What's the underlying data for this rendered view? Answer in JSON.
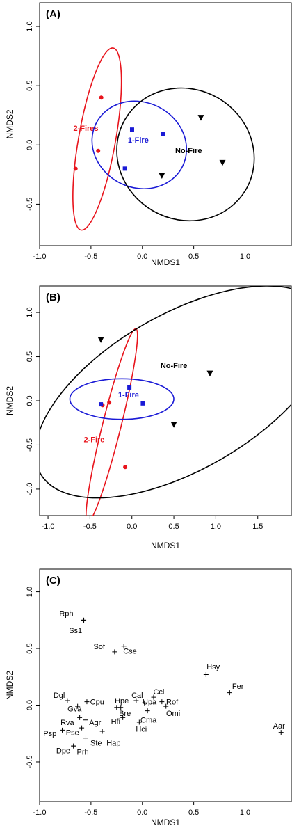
{
  "chart_data": [
    {
      "type": "scatter",
      "panel_label": "(A)",
      "xlabel": "NMDS1",
      "ylabel": "NMDS2",
      "xlim": [
        -1.0,
        1.45
      ],
      "ylim": [
        -0.85,
        1.2
      ],
      "xticks": [
        "-1.0",
        "-0.5",
        "0.0",
        "0.5",
        "1.0"
      ],
      "yticks": [
        "-0.5",
        "0.0",
        "0.5",
        "1.0"
      ],
      "colors": {
        "two_fires": "#e8141c",
        "one_fire": "#1a1ad6",
        "no_fire": "#000000"
      },
      "groups": [
        {
          "name": "2-Fires",
          "color": "#e8141c",
          "marker": "circle",
          "points": [
            {
              "x": -0.4,
              "y": 0.4
            },
            {
              "x": -0.43,
              "y": -0.05
            },
            {
              "x": -0.65,
              "y": -0.2
            }
          ],
          "ellipse": {
            "cx": -0.44,
            "cy": 0.05,
            "rx": 0.18,
            "ry": 0.78,
            "angle": 10
          },
          "label": {
            "x": -0.55,
            "y": 0.12
          }
        },
        {
          "name": "1-Fire",
          "color": "#1a1ad6",
          "marker": "square",
          "points": [
            {
              "x": -0.1,
              "y": 0.13
            },
            {
              "x": 0.2,
              "y": 0.09
            },
            {
              "x": -0.17,
              "y": -0.2
            }
          ],
          "ellipse": {
            "cx": -0.03,
            "cy": 0.0,
            "rx": 0.47,
            "ry": 0.36,
            "angle": 26
          },
          "label": {
            "x": -0.04,
            "y": 0.02
          }
        },
        {
          "name": "No-Fire",
          "color": "#000000",
          "marker": "triangle",
          "points": [
            {
              "x": 0.57,
              "y": 0.23
            },
            {
              "x": 0.78,
              "y": -0.15
            },
            {
              "x": 0.19,
              "y": -0.26
            }
          ],
          "ellipse": {
            "cx": 0.42,
            "cy": -0.08,
            "rx": 0.68,
            "ry": 0.55,
            "angle": 30
          },
          "label": {
            "x": 0.45,
            "y": -0.07
          }
        }
      ]
    },
    {
      "type": "scatter",
      "panel_label": "(B)",
      "xlabel": "NMDS1",
      "ylabel": "NMDS2",
      "xlim": [
        -1.1,
        1.9
      ],
      "ylim": [
        -1.3,
        1.3
      ],
      "xticks": [
        "-1.0",
        "-0.5",
        "0.0",
        "0.5",
        "1.0",
        "1.5"
      ],
      "yticks": [
        "-1.0",
        "-0.5",
        "0.0",
        "0.5",
        "1.0"
      ],
      "groups": [
        {
          "name": "2-Fire",
          "color": "#e8141c",
          "marker": "circle",
          "points": [
            {
              "x": -0.27,
              "y": -0.02
            },
            {
              "x": -0.35,
              "y": -0.05
            },
            {
              "x": -0.08,
              "y": -0.75
            }
          ],
          "ellipse": {
            "cx": -0.24,
            "cy": -0.28,
            "rx": 0.11,
            "ry": 1.13,
            "angle": 14
          },
          "label": {
            "x": -0.45,
            "y": -0.47
          }
        },
        {
          "name": "1-Fire",
          "color": "#1a1ad6",
          "marker": "square",
          "points": [
            {
              "x": -0.37,
              "y": -0.04
            },
            {
              "x": -0.03,
              "y": 0.15
            },
            {
              "x": 0.13,
              "y": -0.03
            }
          ],
          "ellipse": {
            "cx": -0.12,
            "cy": 0.02,
            "rx": 0.62,
            "ry": 0.23,
            "angle": 0
          },
          "label": {
            "x": -0.04,
            "y": 0.04
          }
        },
        {
          "name": "No-Fire",
          "color": "#000000",
          "marker": "triangle",
          "points": [
            {
              "x": -0.37,
              "y": 0.69
            },
            {
              "x": 0.93,
              "y": 0.31
            },
            {
              "x": 0.5,
              "y": -0.27
            }
          ],
          "ellipse": {
            "cx": 0.6,
            "cy": 0.1,
            "rx": 1.95,
            "ry": 0.88,
            "angle": -30
          },
          "label": {
            "x": 0.5,
            "y": 0.37
          }
        }
      ]
    },
    {
      "type": "scatter",
      "panel_label": "(C)",
      "xlabel": "NMDS1",
      "ylabel": "NMDS2",
      "xlim": [
        -1.0,
        1.45
      ],
      "ylim": [
        -0.85,
        1.2
      ],
      "xticks": [
        "-1.0",
        "-0.5",
        "0.0",
        "0.5",
        "1.0"
      ],
      "yticks": [
        "-0.5",
        "0.0",
        "0.5",
        "1.0"
      ],
      "species": [
        {
          "label": "Rph",
          "x": -0.57,
          "y": 0.75,
          "lx": -0.74,
          "ly": 0.81
        },
        {
          "label": "Ss1",
          "x": -0.57,
          "y": 0.75,
          "lx": -0.65,
          "ly": 0.66
        },
        {
          "label": "Sof",
          "x": -0.27,
          "y": 0.47,
          "lx": -0.42,
          "ly": 0.52
        },
        {
          "label": "Cse",
          "x": -0.18,
          "y": 0.52,
          "lx": -0.12,
          "ly": 0.48
        },
        {
          "label": "Hsy",
          "x": 0.62,
          "y": 0.27,
          "lx": 0.69,
          "ly": 0.34
        },
        {
          "label": "Fer",
          "x": 0.85,
          "y": 0.11,
          "lx": 0.93,
          "ly": 0.17
        },
        {
          "label": "Aar",
          "x": 1.35,
          "y": -0.24,
          "lx": 1.33,
          "ly": -0.18
        },
        {
          "label": "Dgl",
          "x": -0.73,
          "y": 0.04,
          "lx": -0.81,
          "ly": 0.09
        },
        {
          "label": "Cpu",
          "x": -0.54,
          "y": 0.03,
          "lx": -0.44,
          "ly": 0.03
        },
        {
          "label": "Gva",
          "x": -0.63,
          "y": -0.01,
          "lx": -0.66,
          "ly": -0.03
        },
        {
          "label": "Hpe",
          "x": -0.25,
          "y": -0.02,
          "lx": -0.2,
          "ly": 0.04
        },
        {
          "label": "Bre",
          "x": -0.21,
          "y": -0.02,
          "lx": -0.17,
          "ly": -0.07
        },
        {
          "label": "Cal",
          "x": -0.06,
          "y": 0.04,
          "lx": -0.05,
          "ly": 0.09
        },
        {
          "label": "Upa",
          "x": 0.02,
          "y": 0.02,
          "lx": 0.07,
          "ly": 0.03
        },
        {
          "label": "Ccl",
          "x": 0.11,
          "y": 0.07,
          "lx": 0.16,
          "ly": 0.12
        },
        {
          "label": "Rof",
          "x": 0.19,
          "y": 0.03,
          "lx": 0.29,
          "ly": 0.03
        },
        {
          "label": "Omi",
          "x": 0.23,
          "y": -0.01,
          "lx": 0.3,
          "ly": -0.07
        },
        {
          "label": "Cma",
          "x": 0.05,
          "y": -0.05,
          "lx": 0.06,
          "ly": -0.13
        },
        {
          "label": "Hfi",
          "x": -0.19,
          "y": -0.11,
          "lx": -0.26,
          "ly": -0.14
        },
        {
          "label": "Hci",
          "x": -0.03,
          "y": -0.15,
          "lx": -0.01,
          "ly": -0.21
        },
        {
          "label": "Rva",
          "x": -0.61,
          "y": -0.11,
          "lx": -0.73,
          "ly": -0.15
        },
        {
          "label": "Agr",
          "x": -0.55,
          "y": -0.13,
          "lx": -0.46,
          "ly": -0.15
        },
        {
          "label": "Psp",
          "x": -0.78,
          "y": -0.22,
          "lx": -0.9,
          "ly": -0.25
        },
        {
          "label": "Pse",
          "x": -0.59,
          "y": -0.2,
          "lx": -0.68,
          "ly": -0.24
        },
        {
          "label": "Ste",
          "x": -0.55,
          "y": -0.29,
          "lx": -0.45,
          "ly": -0.33
        },
        {
          "label": "Hap",
          "x": -0.39,
          "y": -0.23,
          "lx": -0.28,
          "ly": -0.33
        },
        {
          "label": "Dpe",
          "x": -0.67,
          "y": -0.36,
          "lx": -0.77,
          "ly": -0.4
        },
        {
          "label": "Prh",
          "x": -0.67,
          "y": -0.36,
          "lx": -0.58,
          "ly": -0.41
        }
      ]
    }
  ]
}
